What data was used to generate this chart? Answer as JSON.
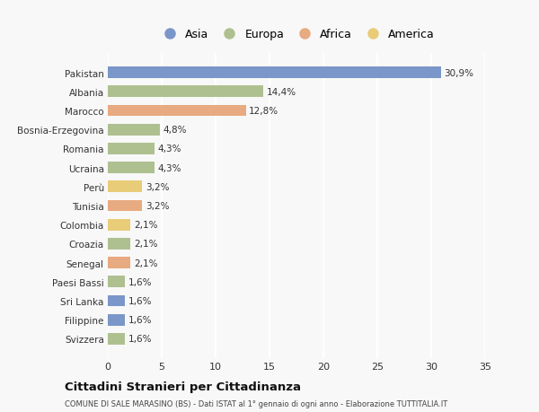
{
  "categories": [
    "Svizzera",
    "Filippine",
    "Sri Lanka",
    "Paesi Bassi",
    "Senegal",
    "Croazia",
    "Colombia",
    "Tunisia",
    "Perù",
    "Ucraina",
    "Romania",
    "Bosnia-Erzegovina",
    "Marocco",
    "Albania",
    "Pakistan"
  ],
  "values": [
    1.6,
    1.6,
    1.6,
    1.6,
    2.1,
    2.1,
    2.1,
    3.2,
    3.2,
    4.3,
    4.3,
    4.8,
    12.8,
    14.4,
    30.9
  ],
  "labels": [
    "1,6%",
    "1,6%",
    "1,6%",
    "1,6%",
    "2,1%",
    "2,1%",
    "2,1%",
    "3,2%",
    "3,2%",
    "4,3%",
    "4,3%",
    "4,8%",
    "12,8%",
    "14,4%",
    "30,9%"
  ],
  "continents": [
    "Europa",
    "Asia",
    "Asia",
    "Europa",
    "Africa",
    "Europa",
    "America",
    "Africa",
    "America",
    "Europa",
    "Europa",
    "Europa",
    "Africa",
    "Europa",
    "Asia"
  ],
  "colors": {
    "Asia": "#7b96c8",
    "Europa": "#afc090",
    "Africa": "#e8aa80",
    "America": "#e8cc78"
  },
  "legend_order": [
    "Asia",
    "Europa",
    "Africa",
    "America"
  ],
  "legend_colors": [
    "#7b96c8",
    "#afc090",
    "#e8aa80",
    "#e8cc78"
  ],
  "xlim": [
    0,
    35
  ],
  "xticks": [
    0,
    5,
    10,
    15,
    20,
    25,
    30,
    35
  ],
  "title": "Cittadini Stranieri per Cittadinanza",
  "subtitle": "COMUNE DI SALE MARASINO (BS) - Dati ISTAT al 1° gennaio di ogni anno - Elaborazione TUTTITALIA.IT",
  "background_color": "#f8f8f8",
  "plot_bg_color": "#f8f8f8",
  "bar_height": 0.6,
  "grid_color": "#ffffff",
  "text_color": "#333333"
}
